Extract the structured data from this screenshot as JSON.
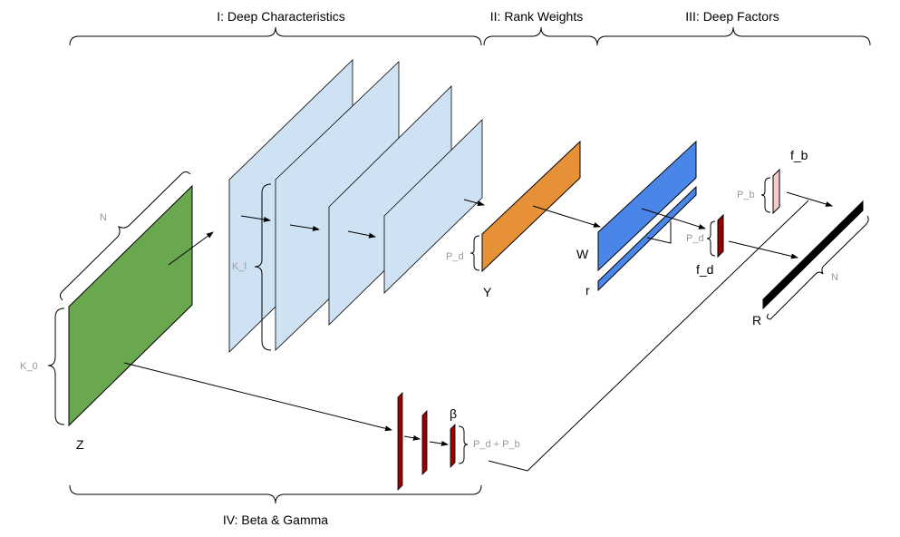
{
  "sections": {
    "deep_characteristics": "I: Deep Characteristics",
    "rank_weights": "II: Rank Weights",
    "deep_factors": "III: Deep Factors",
    "beta_gamma": "IV: Beta & Gamma"
  },
  "labels": {
    "z": "Z",
    "y": "Y",
    "w": "W",
    "r_vec": "r",
    "f_d": "f_d",
    "f_b": "f_b",
    "r_out": "R",
    "beta": "β"
  },
  "dims": {
    "n_top": "N",
    "k0": "K_0",
    "kl": "K_l",
    "pd_y": "P_d",
    "pd_f": "P_d",
    "pb": "P_b",
    "n_r": "N",
    "pd_pb": "P_d + P_b"
  },
  "colors": {
    "green": "#6aa84f",
    "light_blue": "#cfe2f3",
    "orange": "#e69138",
    "blue": "#4a86e8",
    "dark_red": "#990000",
    "pink": "#f4cccc",
    "black": "#000000"
  }
}
